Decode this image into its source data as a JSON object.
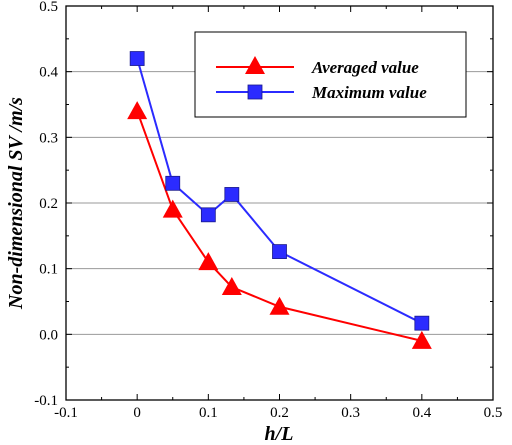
{
  "chart_data": {
    "type": "line",
    "xlabel": "h/L",
    "ylabel": "Non-dimensional SV /m/s",
    "xlim": [
      -0.1,
      0.5
    ],
    "ylim": [
      -0.1,
      0.5
    ],
    "x_ticks": [
      "-0.1",
      "0",
      "0.1",
      "0.2",
      "0.3",
      "0.4",
      "0.5"
    ],
    "y_ticks": [
      "-0.1",
      "0.0",
      "0.1",
      "0.2",
      "0.3",
      "0.4",
      "0.5"
    ],
    "grid": "horizontal",
    "legend_position": "top-right",
    "series": [
      {
        "name": "Averaged value",
        "color": "#ff0000",
        "marker": "triangle",
        "x": [
          0,
          0.05,
          0.1,
          0.133,
          0.2,
          0.4
        ],
        "y": [
          0.34,
          0.19,
          0.11,
          0.072,
          0.042,
          -0.01
        ]
      },
      {
        "name": "Maximum value",
        "color": "#2b2bff",
        "marker": "square",
        "x": [
          0,
          0.05,
          0.1,
          0.133,
          0.2,
          0.4
        ],
        "y": [
          0.42,
          0.23,
          0.182,
          0.213,
          0.126,
          0.017
        ]
      }
    ]
  }
}
